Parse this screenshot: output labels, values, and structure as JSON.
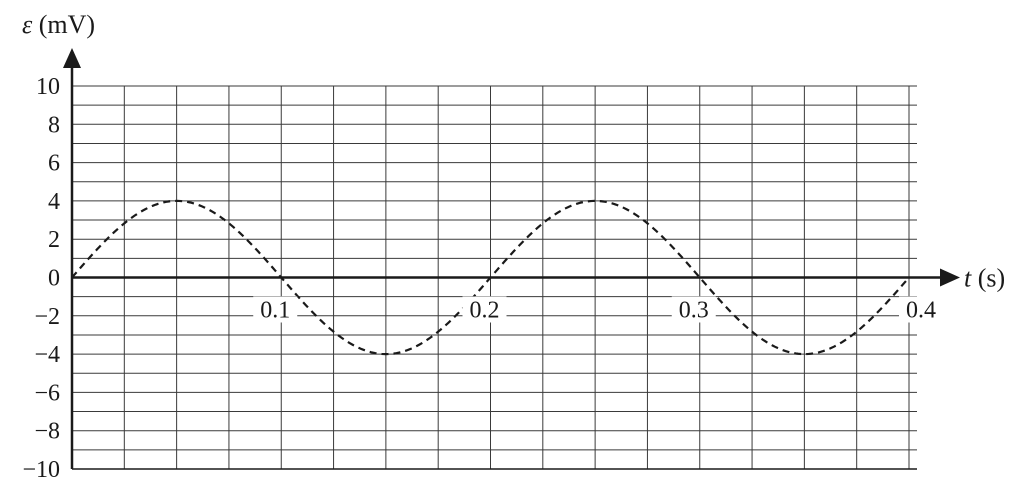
{
  "chart_data": {
    "type": "line",
    "title": "",
    "xlabel": "t (s)",
    "ylabel": "ε (mV)",
    "xlabel_parts": {
      "symbol": "t",
      "unit": "(s)"
    },
    "ylabel_parts": {
      "symbol": "ε",
      "unit": "(mV)"
    },
    "xlim": [
      0,
      0.4
    ],
    "ylim": [
      -10,
      10
    ],
    "x_ticks": [
      0.1,
      0.2,
      0.3,
      0.4
    ],
    "x_tick_labels": [
      "0.1",
      "0.2",
      "0.3",
      "0.4"
    ],
    "y_ticks": [
      10,
      8,
      6,
      4,
      2,
      0,
      -2,
      -4,
      -6,
      -8,
      -10
    ],
    "y_tick_labels": [
      "10",
      "8",
      "6",
      "4",
      "2",
      "0",
      "−2",
      "−4",
      "−6",
      "−8",
      "−10"
    ],
    "grid": true,
    "grid_x_step": 0.025,
    "grid_y_step": 1,
    "series": [
      {
        "line_style": "dashed",
        "color": "#1a1a1a",
        "amplitude": 4,
        "period": 0.2,
        "x": [
          0,
          0.025,
          0.05,
          0.075,
          0.1,
          0.125,
          0.15,
          0.175,
          0.2,
          0.225,
          0.25,
          0.275,
          0.3,
          0.325,
          0.35,
          0.375,
          0.4
        ],
        "values": [
          0,
          2.83,
          4,
          2.83,
          0,
          -2.83,
          -4,
          -2.83,
          0,
          2.83,
          4,
          2.83,
          0,
          -2.83,
          -4,
          -2.83,
          0
        ]
      }
    ],
    "colors": {
      "ink": "#1a1a1a",
      "grid": "#3a3a3a",
      "background": "#ffffff"
    }
  }
}
